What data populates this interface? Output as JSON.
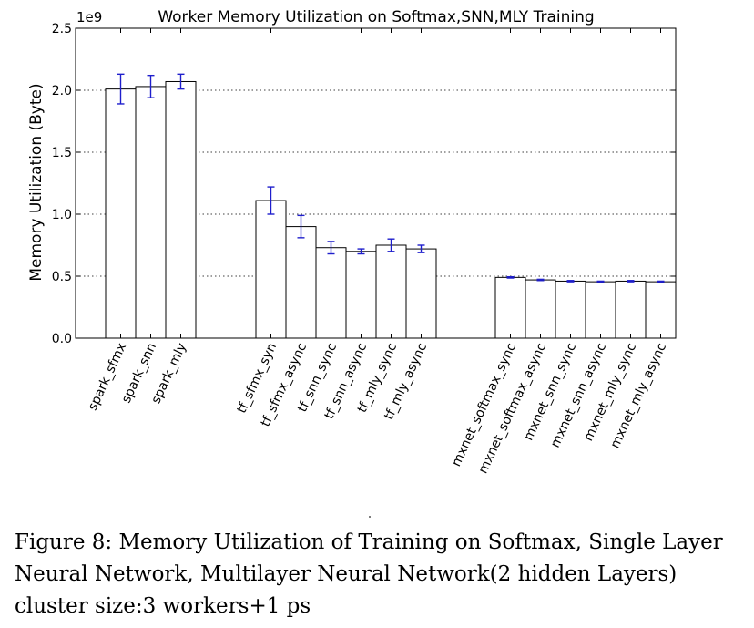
{
  "chart_data": {
    "type": "bar",
    "title": "Worker Memory Utilization on Softmax,SNN,MLY Training",
    "ylabel": "Memory Utilization (Byte)",
    "xlabel": "",
    "y_offset_label": "1e9",
    "ylim": [
      0,
      2.5
    ],
    "yticks": [
      "0.0",
      "0.5",
      "1.0",
      "1.5",
      "2.0",
      "2.5"
    ],
    "grid": "y-dotted",
    "groups": [
      {
        "categories": [
          "spark_sfmx",
          "spark_snn",
          "spark_mly"
        ],
        "values": [
          2.01,
          2.03,
          2.07
        ],
        "errors": [
          0.12,
          0.09,
          0.06
        ]
      },
      {
        "categories": [
          "tf_sfmx_syn",
          "tf_sfmx_async",
          "tf_snn_sync",
          "tf_snn_async",
          "tf_mly_sync",
          "tf_mly_async"
        ],
        "values": [
          1.11,
          0.9,
          0.73,
          0.7,
          0.75,
          0.72
        ],
        "errors": [
          0.11,
          0.09,
          0.05,
          0.02,
          0.05,
          0.03
        ]
      },
      {
        "categories": [
          "mxnet_softmax_sync",
          "mxnet_softmax_async",
          "mxnet_snn_sync",
          "mxnet_snn_async",
          "mxnet_mly_sync",
          "mxnet_mly_async"
        ],
        "values": [
          0.49,
          0.47,
          0.46,
          0.455,
          0.46,
          0.455
        ],
        "errors": [
          0.005,
          0.005,
          0.005,
          0.005,
          0.005,
          0.005
        ]
      }
    ],
    "colors": {
      "bar_fill": "#ffffff",
      "bar_edge": "#000000",
      "error_bar": "#1f1fcc",
      "grid": "#000000"
    }
  },
  "caption": {
    "text": "Figure 8: Memory Utilization of Training on Softmax, Single Layer Neural Network, Multilayer Neural Network(2 hidden Layers) cluster size:3 workers+1 ps"
  }
}
